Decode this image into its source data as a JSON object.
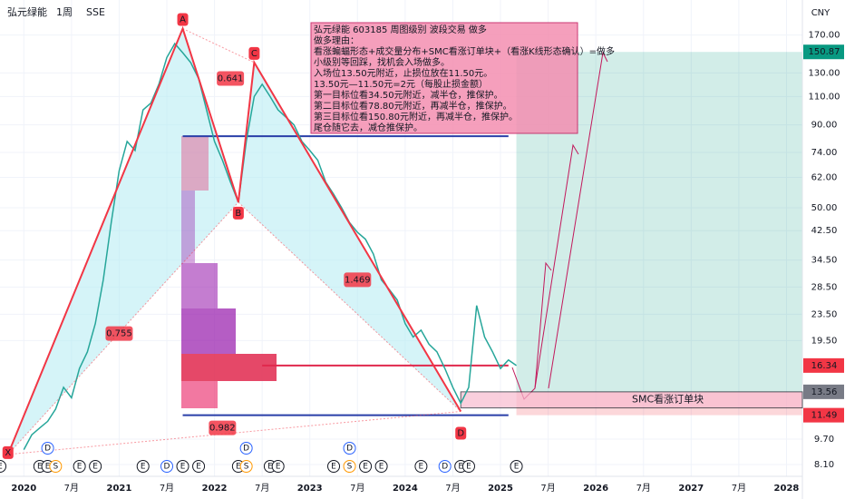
{
  "chart_data": {
    "type": "line",
    "symbol": "弘元绿能",
    "interval": "1周",
    "exchange": "SSE",
    "currency": "CNY",
    "log_scale": true,
    "xlim": [
      "2019-10",
      "2028-03"
    ],
    "ylim": [
      7.45,
      218
    ],
    "xticks": [
      {
        "value": "2020-01",
        "label": "2020"
      },
      {
        "value": "2020-07",
        "label": "7月"
      },
      {
        "value": "2021-01",
        "label": "2021"
      },
      {
        "value": "2021-07",
        "label": "7月"
      },
      {
        "value": "2022-01",
        "label": "2022"
      },
      {
        "value": "2022-07",
        "label": "7月"
      },
      {
        "value": "2023-01",
        "label": "2023"
      },
      {
        "value": "2023-07",
        "label": "7月"
      },
      {
        "value": "2024-01",
        "label": "2024"
      },
      {
        "value": "2024-07",
        "label": "7月"
      },
      {
        "value": "2025-01",
        "label": "2025"
      },
      {
        "value": "2025-07",
        "label": "7月"
      },
      {
        "value": "2026-01",
        "label": "2026"
      },
      {
        "value": "2026-07",
        "label": "7月"
      },
      {
        "value": "2027-01",
        "label": "2027"
      },
      {
        "value": "2027-07",
        "label": "7月"
      },
      {
        "value": "2028-01",
        "label": "2028"
      }
    ],
    "yticks": [
      {
        "value": 8.1,
        "label": "8.10"
      },
      {
        "value": 9.7,
        "label": "9.70"
      },
      {
        "value": 19.5,
        "label": "19.50"
      },
      {
        "value": 23.5,
        "label": "23.50"
      },
      {
        "value": 28.5,
        "label": "28.50"
      },
      {
        "value": 34.5,
        "label": "34.50"
      },
      {
        "value": 42.5,
        "label": "42.50"
      },
      {
        "value": 50,
        "label": "50.00"
      },
      {
        "value": 62,
        "label": "62.00"
      },
      {
        "value": 74,
        "label": "74.00"
      },
      {
        "value": 90,
        "label": "90.00"
      },
      {
        "value": 110,
        "label": "110.00"
      },
      {
        "value": 130,
        "label": "130.00"
      },
      {
        "value": 170,
        "label": "170.00"
      }
    ],
    "price_tags": [
      {
        "value": 150.87,
        "color": "#089981"
      },
      {
        "value": 16.34,
        "color": "#f23645"
      },
      {
        "value": 13.56,
        "color": "#787b86"
      },
      {
        "value": 11.49,
        "color": "#f23645"
      }
    ],
    "x": [
      "2020-01",
      "2020-02",
      "2020-03",
      "2020-04",
      "2020-05",
      "2020-06",
      "2020-07",
      "2020-08",
      "2020-09",
      "2020-10",
      "2020-11",
      "2020-12",
      "2021-01",
      "2021-02",
      "2021-03",
      "2021-04",
      "2021-05",
      "2021-06",
      "2021-07",
      "2021-08",
      "2021-09",
      "2021-10",
      "2021-11",
      "2021-12",
      "2022-01",
      "2022-02",
      "2022-03",
      "2022-04",
      "2022-05",
      "2022-06",
      "2022-07",
      "2022-08",
      "2022-09",
      "2022-10",
      "2022-11",
      "2022-12",
      "2023-01",
      "2023-02",
      "2023-03",
      "2023-04",
      "2023-05",
      "2023-06",
      "2023-07",
      "2023-08",
      "2023-09",
      "2023-10",
      "2023-11",
      "2023-12",
      "2024-01",
      "2024-02",
      "2024-03",
      "2024-04",
      "2024-05",
      "2024-06",
      "2024-07",
      "2024-08",
      "2024-09",
      "2024-10",
      "2024-11",
      "2024-12",
      "2025-01",
      "2025-02",
      "2025-03"
    ],
    "series": [
      {
        "name": "弘元绿能",
        "color": "#26a69a",
        "values": [
          9,
          10,
          10.5,
          11,
          12,
          14,
          13,
          16,
          18,
          22,
          30,
          45,
          65,
          80,
          75,
          100,
          105,
          120,
          145,
          160,
          150,
          140,
          125,
          100,
          80,
          70,
          60,
          52,
          80,
          110,
          120,
          110,
          100,
          95,
          90,
          80,
          75,
          70,
          60,
          55,
          50,
          45,
          42,
          40,
          36,
          30,
          28,
          26,
          22,
          20,
          21,
          19,
          18,
          16,
          14,
          12.5,
          14,
          25,
          20,
          18,
          16,
          17,
          16.34
        ]
      }
    ],
    "pattern": {
      "color": "#f23645",
      "points": [
        {
          "label": "X",
          "date": "2019-11",
          "value": 8.7
        },
        {
          "label": "A",
          "date": "2021-09",
          "value": 178
        },
        {
          "label": "B",
          "date": "2022-04",
          "value": 52
        },
        {
          "label": "C",
          "date": "2022-06",
          "value": 140
        },
        {
          "label": "D",
          "date": "2024-08",
          "value": 11.8
        }
      ],
      "ratios": [
        {
          "label": "0.641",
          "date": "2022-03",
          "value": 125
        },
        {
          "label": "0.755",
          "date": "2021-01",
          "value": 20.5
        },
        {
          "label": "1.469",
          "date": "2023-07",
          "value": 30
        },
        {
          "label": "0.982",
          "date": "2022-02",
          "value": 10.5
        }
      ]
    },
    "levels": [
      {
        "value": 83,
        "color": "#2a3fa8",
        "from": "2021-09",
        "to": "2025-02"
      },
      {
        "value": 11.49,
        "color": "#2a3fa8",
        "from": "2021-09",
        "to": "2025-02"
      },
      {
        "value": 16.34,
        "color": "#e0284d",
        "from": "2022-07",
        "to": "2025-02"
      }
    ],
    "order_block": {
      "label": "SMC看涨订单块",
      "top": 13.56,
      "bottom": 12.1,
      "from": "2024-08",
      "to": "2028-03"
    },
    "target_zone": {
      "top": 150.87,
      "entry": 13.56,
      "stop": 11.49,
      "from": "2025-03",
      "to": "2028-03"
    },
    "note": [
      "弘元绿能 603185 周图级别 波段交易 做多",
      "做多理由：",
      "看涨蝙蝠形态+成交量分布+SMC看涨订单块+（看涨K线形态确认）=做多",
      "小级别等回踩，找机会入场做多。",
      "入场位13.50元附近，止损位放在11.50元。",
      "13.50元—11.50元=2元（每股止损金额）",
      "第一目标位看34.50元附近，减半仓，推保护。",
      "第二目标位看78.80元附近，再减半仓，推保护。",
      "第三目标位看150.80元附近，再减半仓，推保护。",
      "尾仓随它去，减仓推保护。"
    ],
    "events_top": [
      {
        "label": "D",
        "date": "2020-04"
      },
      {
        "label": "D",
        "date": "2022-05"
      },
      {
        "label": "D",
        "date": "2023-06"
      }
    ],
    "events": [
      {
        "label": "E",
        "date": "2019-10"
      },
      {
        "label": "E",
        "date": "2020-03"
      },
      {
        "label": "E",
        "date": "2020-04"
      },
      {
        "label": "S",
        "date": "2020-05"
      },
      {
        "label": "E",
        "date": "2020-08"
      },
      {
        "label": "E",
        "date": "2020-10"
      },
      {
        "label": "E",
        "date": "2021-04"
      },
      {
        "label": "D",
        "date": "2021-07"
      },
      {
        "label": "E",
        "date": "2021-09"
      },
      {
        "label": "E",
        "date": "2021-11"
      },
      {
        "label": "E",
        "date": "2022-04"
      },
      {
        "label": "S",
        "date": "2022-05"
      },
      {
        "label": "E",
        "date": "2022-08"
      },
      {
        "label": "E",
        "date": "2022-09"
      },
      {
        "label": "E",
        "date": "2023-04"
      },
      {
        "label": "S",
        "date": "2023-06"
      },
      {
        "label": "E",
        "date": "2023-08"
      },
      {
        "label": "E",
        "date": "2023-10"
      },
      {
        "label": "E",
        "date": "2024-03"
      },
      {
        "label": "D",
        "date": "2024-06"
      },
      {
        "label": "E",
        "date": "2024-08"
      },
      {
        "label": "E",
        "date": "2024-09"
      },
      {
        "label": "E",
        "date": "2025-03"
      }
    ]
  }
}
